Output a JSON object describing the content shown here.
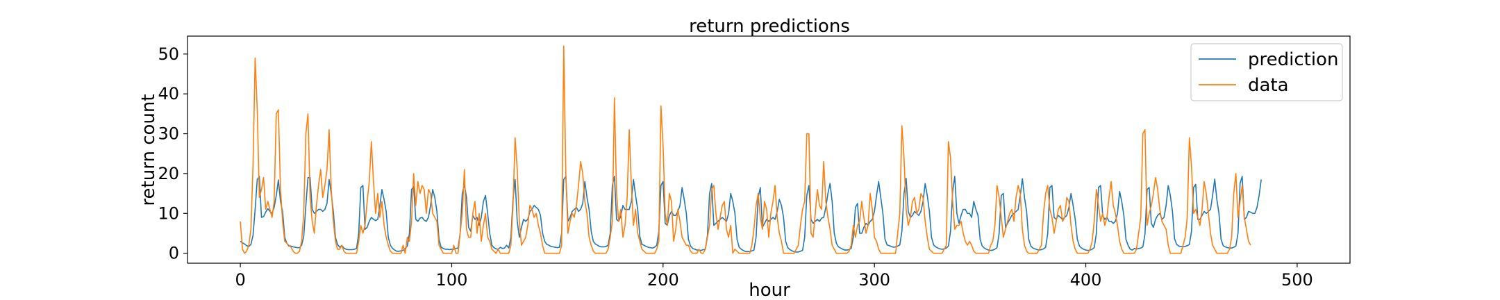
{
  "chart_data": {
    "type": "line",
    "title": "return predictions",
    "xlabel": "hour",
    "ylabel": "return count",
    "xlim": [
      -25,
      525
    ],
    "ylim": [
      -2.5,
      54.5
    ],
    "xticks": [
      0,
      100,
      200,
      300,
      400,
      500
    ],
    "yticks": [
      0,
      10,
      20,
      30,
      40,
      50
    ],
    "grid": false,
    "legend": "top-right",
    "x_start": 0,
    "x_step": 1,
    "series": [
      {
        "name": "prediction",
        "color": "#1f77b4",
        "values": [
          3,
          2.6,
          2.3,
          1.9,
          1.7,
          2.2,
          4.5,
          11,
          18.5,
          19.3,
          9,
          9.2,
          10.3,
          11.2,
          10.5,
          10,
          11.5,
          14.5,
          18.4,
          13,
          10.5,
          4,
          2.5,
          1.8,
          1.8,
          1.6,
          1.5,
          1.4,
          1.4,
          2,
          4.2,
          12,
          19,
          19,
          11,
          10,
          10.5,
          11,
          11,
          10.5,
          11,
          12.5,
          18.5,
          15,
          10.5,
          4,
          2.2,
          1.5,
          2,
          1.3,
          1,
          0.9,
          0.9,
          0.9,
          1,
          1.2,
          5,
          16.5,
          17,
          6,
          6.5,
          8,
          9,
          8.5,
          8.2,
          8.5,
          12,
          16,
          13.5,
          10.5,
          4,
          2,
          1.2,
          0.8,
          0.5,
          0.5,
          0.6,
          0.7,
          1.2,
          1.8,
          5,
          16,
          16.8,
          8.5,
          8,
          8.8,
          9,
          8.3,
          8,
          9,
          12,
          16,
          14,
          10.5,
          3.5,
          1.5,
          1.2,
          1,
          1,
          0.9,
          1,
          1,
          1.2,
          1.3,
          5,
          15,
          17.3,
          14,
          6.5,
          5.5,
          9.5,
          8.5,
          9,
          7,
          9,
          13,
          14.5,
          10,
          5,
          2,
          1.4,
          1.1,
          1,
          1.5,
          1.2,
          1.3,
          2,
          1.3,
          4,
          13.5,
          18.5,
          8,
          4,
          6.5,
          8.5,
          8,
          8.5,
          10.5,
          11,
          12,
          11.5,
          11,
          9.5,
          5,
          3,
          2.2,
          2,
          1.7,
          1.6,
          1.5,
          1.4,
          1.5,
          5,
          18.5,
          19.3,
          8,
          9,
          10.5,
          11,
          11.5,
          10.5,
          11,
          12.5,
          18,
          14,
          11,
          5.5,
          3,
          2.3,
          2,
          1.7,
          1.6,
          1.6,
          1.7,
          2,
          5,
          17,
          19.3,
          8.5,
          8,
          9.3,
          12,
          11,
          11,
          11,
          13,
          18.5,
          14.5,
          11,
          4.2,
          2.2,
          2,
          1.7,
          1.5,
          1.4,
          1.3,
          1.5,
          2,
          5.5,
          17,
          18,
          7.5,
          7,
          9.5,
          10.5,
          9.5,
          9.5,
          10.5,
          12,
          16.5,
          13.5,
          10,
          3.5,
          1.8,
          1.2,
          1,
          0.8,
          0.8,
          0.7,
          0.9,
          1,
          4.5,
          15,
          17.5,
          7,
          7.5,
          8,
          8.5,
          9,
          8.5,
          8,
          10,
          15,
          13,
          10,
          3.5,
          1.5,
          1,
          0.7,
          0.4,
          0.4,
          0.4,
          0.6,
          0.8,
          4,
          14,
          16.5,
          6.5,
          7.5,
          8.5,
          8,
          8.5,
          9,
          8.5,
          10.5,
          13.5,
          12,
          9,
          3,
          1.4,
          0.9,
          0.6,
          0.4,
          0.3,
          0.3,
          0.5,
          0.7,
          4,
          14.5,
          17,
          8.5,
          7.5,
          8,
          8.5,
          8,
          8.8,
          9,
          11.5,
          15,
          17.5,
          13,
          5,
          2.5,
          1.6,
          1.3,
          1,
          0.8,
          0.8,
          0.9,
          1.2,
          4,
          11.5,
          12.5,
          5,
          5,
          6.5,
          7.5,
          7,
          8,
          8.5,
          10.5,
          14.5,
          18,
          14,
          10,
          3.5,
          2.1,
          1.9,
          1.7,
          1.5,
          1.6,
          1.8,
          2.1,
          5.5,
          15,
          18.8,
          10.5,
          9,
          9.5,
          10.5,
          10,
          9.5,
          10.5,
          13,
          17.5,
          14.5,
          10.5,
          4,
          2.1,
          1.6,
          1.3,
          1.1,
          1,
          1.1,
          1.3,
          1.8,
          5.5,
          15.5,
          19.3,
          10,
          7.5,
          9.5,
          11,
          11,
          10,
          10,
          9,
          13,
          11,
          9.5,
          3.5,
          1.8,
          1.3,
          1,
          0.8,
          0.7,
          0.8,
          1,
          1.4,
          5,
          14.5,
          15,
          6.5,
          7.5,
          8.5,
          9.5,
          10,
          10.5,
          11,
          14.5,
          18.7,
          14,
          10.5,
          3.5,
          1.8,
          1.3,
          1.1,
          0.9,
          0.8,
          0.9,
          1.1,
          1.5,
          5,
          16.5,
          17,
          9,
          8.5,
          9.5,
          9,
          8.5,
          9,
          9.5,
          11.5,
          15,
          12,
          8.5,
          3.5,
          1.8,
          1.3,
          1,
          0.8,
          0.7,
          0.8,
          1,
          1.4,
          5,
          16.5,
          17,
          9.5,
          8.5,
          9,
          8,
          8,
          7.5,
          8,
          10,
          15.5,
          13,
          9.5,
          3.5,
          2,
          1,
          0.8,
          1.2,
          1,
          1.2,
          1.3,
          1.6,
          4.8,
          16,
          16.5,
          7.5,
          6.5,
          8.5,
          9.5,
          10,
          8.5,
          9,
          12,
          17,
          14.5,
          10.5,
          3.6,
          2.2,
          1.8,
          1.7,
          1.6,
          1.7,
          1.9,
          2.2,
          5.5,
          16.5,
          17.3,
          8.5,
          8.5,
          9.5,
          10.5,
          10,
          10.5,
          11,
          14.5,
          18.6,
          13.5,
          10,
          3.5,
          1.9,
          1.6,
          1.4,
          1.3,
          1.3,
          1.5,
          1.8,
          5,
          17.5,
          19.3,
          8.5,
          9,
          10.5,
          10.3,
          10,
          10,
          11.5,
          14.5,
          18.5
        ]
      },
      {
        "name": "data",
        "color": "#ff7f0e",
        "values": [
          8,
          1,
          0,
          0.5,
          2,
          6,
          22,
          49,
          36,
          14,
          16,
          19,
          11,
          13,
          11,
          9,
          13,
          35,
          36,
          16,
          8,
          3,
          2.5,
          2,
          1.5,
          0.5,
          0,
          0,
          0.5,
          3,
          10,
          30,
          35,
          14,
          8,
          5,
          12,
          17,
          21,
          14,
          17,
          21,
          31,
          16,
          8,
          3,
          1,
          1,
          2,
          0.5,
          0,
          0,
          0,
          0,
          0,
          0,
          3,
          7,
          5,
          7,
          13,
          18,
          28,
          18,
          10,
          15,
          9,
          13,
          7,
          4,
          2,
          0.5,
          0,
          0,
          0,
          0,
          0,
          2,
          0,
          4,
          3,
          8,
          20,
          12,
          18,
          15,
          17,
          16,
          10,
          16,
          15,
          10,
          9,
          8,
          2,
          1,
          0,
          0,
          0,
          0,
          0,
          2,
          0,
          0,
          5,
          10,
          21,
          6,
          4,
          4,
          10,
          13,
          5,
          10,
          3,
          7,
          10,
          4,
          3,
          1,
          0.5,
          0,
          1,
          0,
          0,
          0,
          0,
          0,
          2,
          12,
          29,
          21,
          8,
          2,
          3,
          4,
          7,
          12,
          11,
          9,
          10,
          7,
          5,
          2,
          0,
          0,
          0,
          0,
          0,
          0,
          0,
          0,
          2,
          52,
          20,
          5,
          8,
          10,
          9,
          12,
          17,
          23,
          20,
          13,
          10,
          4,
          2,
          0.5,
          0,
          0,
          0,
          0,
          0,
          0,
          1,
          4,
          8,
          39,
          15,
          8,
          11,
          4,
          7,
          14,
          31,
          17,
          7,
          11,
          5,
          3,
          1,
          0.5,
          0,
          0,
          0,
          0,
          0,
          1,
          3,
          37,
          27,
          10,
          7,
          15,
          13,
          3,
          6,
          11,
          8,
          4,
          3,
          2,
          2,
          0.5,
          0,
          0,
          0,
          1,
          0,
          0,
          1,
          4,
          7,
          16,
          17,
          10,
          6,
          9,
          12,
          13,
          6,
          4,
          7,
          0,
          1,
          0.5,
          0,
          0,
          0,
          0,
          0,
          0,
          2,
          6,
          12,
          15,
          9,
          6,
          13,
          11,
          4,
          10,
          13,
          17,
          9,
          5,
          3,
          0,
          0,
          0,
          0,
          0,
          0,
          1,
          2,
          7,
          11,
          13,
          30,
          30,
          5,
          4,
          10,
          16,
          12,
          11,
          23,
          13,
          9,
          6,
          2,
          1,
          0,
          0,
          0,
          0,
          0,
          0,
          0.5,
          2,
          7,
          4,
          7,
          8,
          13,
          9,
          5,
          7,
          15,
          11,
          4,
          3,
          1,
          0,
          0,
          0,
          0,
          0,
          0,
          0,
          0,
          5,
          10,
          32,
          24,
          11,
          7,
          9,
          13,
          14,
          10,
          11,
          15,
          14,
          8,
          4,
          1,
          0.5,
          0,
          0,
          0,
          0,
          0,
          1,
          2,
          28,
          24,
          13,
          6,
          7,
          7,
          8,
          5,
          3,
          2,
          3,
          2,
          0.5,
          0,
          0,
          0,
          0,
          0,
          0,
          0,
          2,
          3,
          7,
          17,
          14,
          9,
          4,
          6,
          8,
          10,
          11,
          8,
          14,
          17,
          15,
          6,
          2,
          0.5,
          0,
          0,
          0,
          0,
          0,
          1,
          2,
          10,
          15,
          17,
          11,
          9,
          5,
          8,
          11,
          12,
          8,
          9,
          14,
          13,
          7,
          3,
          1,
          0,
          0,
          0,
          0,
          0,
          0,
          1,
          3,
          8,
          16,
          12,
          8,
          10,
          7,
          9,
          14,
          18,
          12,
          10,
          7,
          3,
          1,
          0,
          0,
          0,
          0,
          0,
          0,
          1,
          5,
          9,
          30,
          31,
          7,
          10,
          12,
          15,
          19,
          16,
          11,
          8,
          7,
          6,
          2,
          0,
          0,
          0,
          0,
          0,
          0,
          2,
          4,
          9,
          29,
          22,
          10,
          11,
          9,
          7,
          11,
          18,
          15,
          10,
          5,
          2,
          1,
          0,
          0,
          0,
          0,
          0,
          0,
          1,
          4,
          15,
          20,
          9,
          13,
          17,
          9,
          6,
          3,
          2
        ]
      }
    ]
  }
}
